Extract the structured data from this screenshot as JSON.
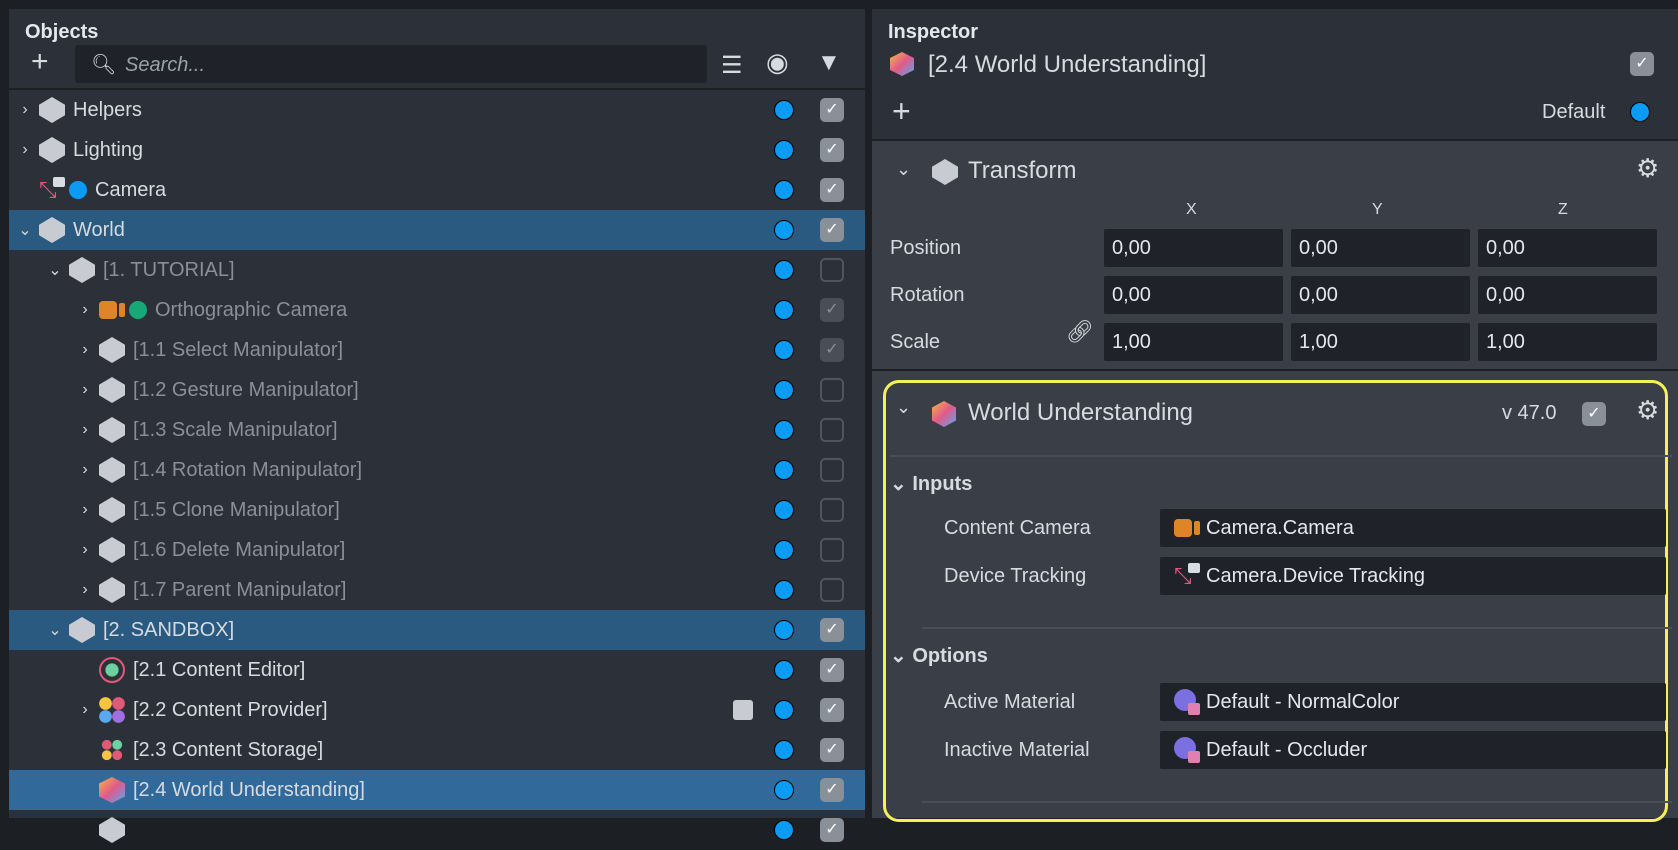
{
  "objects": {
    "title": "Objects",
    "search_placeholder": "Search...",
    "rows": [
      {
        "label": "Helpers",
        "depth": 0,
        "chev": "right",
        "icon": "scene-object-icon",
        "checked": true,
        "dim": false
      },
      {
        "label": "Lighting",
        "depth": 0,
        "chev": "right",
        "icon": "scene-object-icon",
        "checked": true,
        "dim": false
      },
      {
        "label": "Camera",
        "depth": 0,
        "chev": "none",
        "icon": "device-tracking-icon",
        "checked": true,
        "dim": false,
        "extra": "blue-dot"
      },
      {
        "label": "World",
        "depth": 0,
        "chev": "down",
        "icon": "scene-object-icon",
        "checked": true,
        "dim": false,
        "sel": 1
      },
      {
        "label": "[1. TUTORIAL]",
        "depth": 1,
        "chev": "down",
        "icon": "scene-object-icon",
        "checked": false,
        "dim": true
      },
      {
        "label": "Orthographic Camera",
        "depth": 2,
        "chev": "right",
        "icon": "camera-icon",
        "checked": true,
        "dim": true,
        "extra": "green-dot"
      },
      {
        "label": "[1.1 Select Manipulator]",
        "depth": 2,
        "chev": "right",
        "icon": "scene-object-icon",
        "checked": true,
        "dim": true
      },
      {
        "label": "[1.2 Gesture Manipulator]",
        "depth": 2,
        "chev": "right",
        "icon": "scene-object-icon",
        "checked": false,
        "dim": true
      },
      {
        "label": "[1.3 Scale Manipulator]",
        "depth": 2,
        "chev": "right",
        "icon": "scene-object-icon",
        "checked": false,
        "dim": true
      },
      {
        "label": "[1.4 Rotation Manipulator]",
        "depth": 2,
        "chev": "right",
        "icon": "scene-object-icon",
        "checked": false,
        "dim": true
      },
      {
        "label": "[1.5 Clone Manipulator]",
        "depth": 2,
        "chev": "right",
        "icon": "scene-object-icon",
        "checked": false,
        "dim": true
      },
      {
        "label": "[1.6 Delete Manipulator]",
        "depth": 2,
        "chev": "right",
        "icon": "scene-object-icon",
        "checked": false,
        "dim": true
      },
      {
        "label": "[1.7 Parent Manipulator]",
        "depth": 2,
        "chev": "right",
        "icon": "scene-object-icon",
        "checked": false,
        "dim": true
      },
      {
        "label": "[2. SANDBOX]",
        "depth": 1,
        "chev": "down",
        "icon": "scene-object-icon",
        "checked": true,
        "dim": false,
        "sel": 1
      },
      {
        "label": "[2.1 Content Editor]",
        "depth": 2,
        "chev": "none",
        "icon": "content-editor-icon",
        "checked": true,
        "dim": false
      },
      {
        "label": "[2.2 Content Provider]",
        "depth": 2,
        "chev": "right",
        "icon": "content-provider-icon",
        "checked": true,
        "dim": false,
        "script": true
      },
      {
        "label": "[2.3 Content Storage]",
        "depth": 2,
        "chev": "none",
        "icon": "content-storage-icon",
        "checked": true,
        "dim": false
      },
      {
        "label": "[2.4 World Understanding]",
        "depth": 2,
        "chev": "none",
        "icon": "world-understanding-icon",
        "checked": true,
        "dim": false,
        "sel": 2
      },
      {
        "label": "",
        "depth": 2,
        "chev": "none",
        "icon": "scene-object-icon",
        "checked": true,
        "dim": false
      }
    ]
  },
  "inspector": {
    "title": "Inspector",
    "object_name": "[2.4 World Understanding]",
    "layer": "Default",
    "transform": {
      "title": "Transform",
      "axes": [
        "X",
        "Y",
        "Z"
      ],
      "rows": [
        {
          "label": "Position",
          "values": [
            "0,00",
            "0,00",
            "0,00"
          ]
        },
        {
          "label": "Rotation",
          "values": [
            "0,00",
            "0,00",
            "0,00"
          ]
        },
        {
          "label": "Scale",
          "values": [
            "1,00",
            "1,00",
            "1,00"
          ]
        }
      ]
    },
    "component": {
      "title": "World Understanding",
      "version": "v 47.0",
      "inputs_title": "Inputs",
      "inputs": [
        {
          "label": "Content Camera",
          "value": "Camera.Camera",
          "icon": "camera-icon"
        },
        {
          "label": "Device Tracking",
          "value": "Camera.Device Tracking",
          "icon": "device-tracking-icon"
        }
      ],
      "options_title": "Options",
      "options": [
        {
          "label": "Active Material",
          "value": "Default - NormalColor",
          "icon": "material-icon"
        },
        {
          "label": "Inactive Material",
          "value": "Default - Occluder",
          "icon": "material-icon"
        }
      ]
    }
  },
  "colors": {
    "highlight": "#f5f05a",
    "selection": "#2a5a80",
    "dot": "#0a9cf5"
  }
}
